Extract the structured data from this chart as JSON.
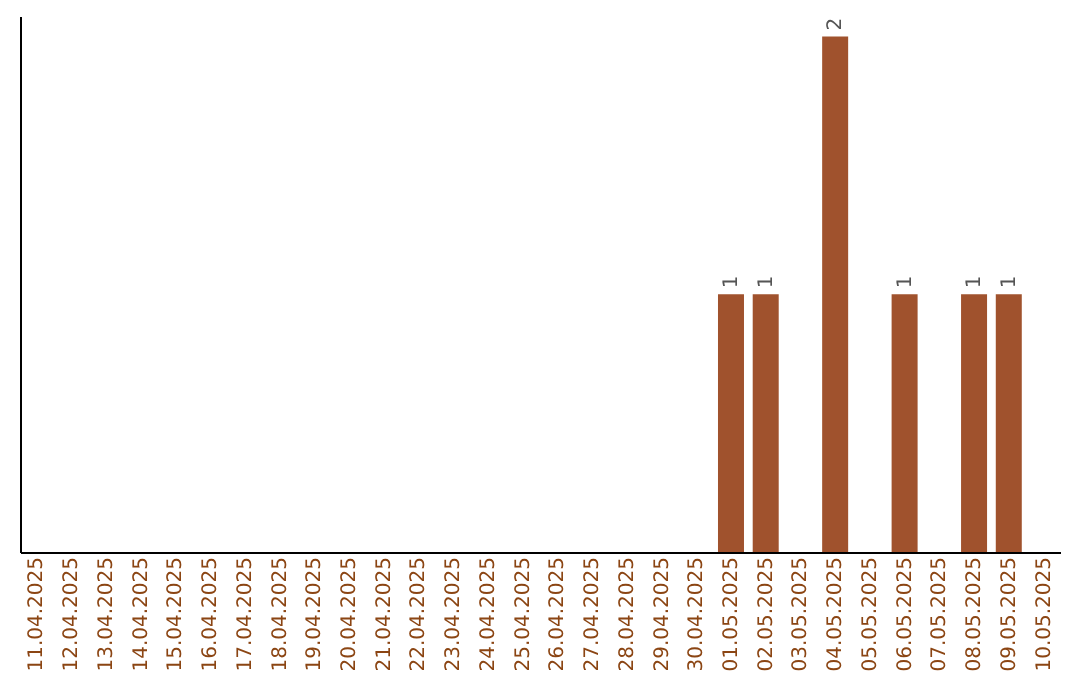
{
  "chart_data": {
    "type": "bar",
    "categories": [
      "11.04.2025",
      "12.04.2025",
      "13.04.2025",
      "14.04.2025",
      "15.04.2025",
      "16.04.2025",
      "17.04.2025",
      "18.04.2025",
      "19.04.2025",
      "20.04.2025",
      "21.04.2025",
      "22.04.2025",
      "23.04.2025",
      "24.04.2025",
      "25.04.2025",
      "26.04.2025",
      "27.04.2025",
      "28.04.2025",
      "29.04.2025",
      "30.04.2025",
      "01.05.2025",
      "02.05.2025",
      "03.05.2025",
      "04.05.2025",
      "05.05.2025",
      "06.05.2025",
      "07.05.2025",
      "08.05.2025",
      "09.05.2025",
      "10.05.2025"
    ],
    "values": [
      null,
      null,
      null,
      null,
      null,
      null,
      null,
      null,
      null,
      null,
      null,
      null,
      null,
      null,
      null,
      null,
      null,
      null,
      null,
      null,
      1,
      1,
      null,
      2,
      null,
      1,
      null,
      1,
      1,
      null
    ],
    "value_labels": [
      null,
      null,
      null,
      null,
      null,
      null,
      null,
      null,
      null,
      null,
      null,
      null,
      null,
      null,
      null,
      null,
      null,
      null,
      null,
      null,
      "1",
      "1",
      null,
      "2",
      null,
      "1",
      null,
      "1",
      "1",
      null
    ],
    "color": "#a0522d",
    "ylim": [
      0,
      2.08
    ],
    "tick_labels": "x",
    "grid": false
  }
}
